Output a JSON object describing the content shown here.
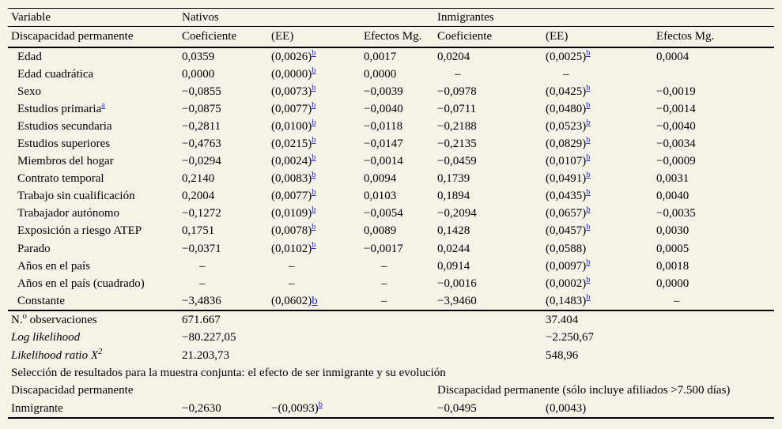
{
  "colors": {
    "background": "#f5f2e8",
    "text": "#000000",
    "footnote_link": "#2626cb",
    "rule": "#000000"
  },
  "table": {
    "header_row1": {
      "variable": "Variable",
      "nativos": "Nativos",
      "inmigrantes": "Inmigrantes"
    },
    "header_row2": {
      "variable": "Discapacidad permanente",
      "columns": [
        "Coeficiente",
        "(EE)",
        "Efectos Mg.",
        "Coeficiente",
        "(EE)",
        "Efectos Mg."
      ]
    },
    "rows": [
      {
        "label": "Edad",
        "cells": [
          "0,0359",
          "(0,0026)^b",
          "0,0017",
          "0,0204",
          "(0,0025)^b",
          "0,0004"
        ]
      },
      {
        "label": "Edad cuadrática",
        "cells": [
          "0,0000",
          "(0,0000)^b",
          "0,0000",
          "–",
          "–",
          ""
        ]
      },
      {
        "label": "Sexo",
        "cells": [
          "−0,0855",
          "(0,0073)^b",
          "−0,0039",
          "−0,0978",
          "(0,0425)^b",
          "−0,0019"
        ]
      },
      {
        "label": "Estudios primaria^a",
        "cells": [
          "−0,0875",
          "(0,0077)^b",
          "−0,0040",
          "−0,0711",
          "(0,0480)^b",
          "−0,0014"
        ]
      },
      {
        "label": "Estudios secundaria",
        "cells": [
          "−0,2811",
          "(0,0100)^b",
          "−0,0118",
          "−0,2188",
          "(0,0523)^b",
          "−0,0040"
        ]
      },
      {
        "label": "Estudios superiores",
        "cells": [
          "−0,4763",
          "(0,0215)^b",
          "−0,0147",
          "−0,2135",
          "(0,0829)^b",
          "−0,0034"
        ]
      },
      {
        "label": "Miembros del hogar",
        "cells": [
          "−0,0294",
          "(0,0024)^b",
          "−0,0014",
          "−0,0459",
          "(0,0107)^b",
          "−0,0009"
        ]
      },
      {
        "label": "Contrato temporal",
        "cells": [
          "0,2140",
          "(0,0083)^b",
          "0,0094",
          "0,1739",
          "(0,0491)^b",
          "0,0031"
        ]
      },
      {
        "label": "Trabajo sin cualificación",
        "cells": [
          "0,2004",
          "(0,0077)^b",
          "0,0103",
          "0,1894",
          "(0,0435)^b",
          "0,0040"
        ]
      },
      {
        "label": "Trabajador autónomo",
        "cells": [
          "−0,1272",
          "(0,0109)^b",
          "−0,0054",
          "−0,2094",
          "(0,0657)^b",
          "−0,0035"
        ]
      },
      {
        "label": "Exposición a riesgo ATEP",
        "cells": [
          "0,1751",
          "(0,0078)^b",
          "0,0089",
          "0,1428",
          "(0,0457)^b",
          "0,0030"
        ]
      },
      {
        "label": "Parado",
        "cells": [
          "−0,0371",
          "(0,0102)^b",
          "−0,0017",
          "0,0244",
          "(0,0588)",
          "0,0005"
        ]
      },
      {
        "label": "Años en el país",
        "cells": [
          "–",
          "–",
          "–",
          "0,0914",
          "(0,0097)^b",
          "0,0018"
        ]
      },
      {
        "label": "Años en el país (cuadrado)",
        "cells": [
          "–",
          "–",
          "–",
          "−0,0016",
          "(0,0002)^b",
          "0,0000"
        ]
      },
      {
        "label": "Constante",
        "cells": [
          "−3,4836",
          "(0,0602)~b",
          "–",
          "−3,9460",
          "(0,1483)^b",
          "–"
        ]
      }
    ],
    "stats": [
      {
        "label": "N.%o observaciones",
        "italic": false,
        "nativos": "671.667",
        "inmigrantes": "37.404"
      },
      {
        "label": "Log likelihood",
        "italic": true,
        "nativos": "−80.227,05",
        "inmigrantes": "−2.250,67"
      },
      {
        "label": "Likelihood ratio X%2",
        "italic": true,
        "nativos": "21.203,73",
        "inmigrantes": "548,96"
      }
    ],
    "selection": {
      "title": "Selección de resultados para la muestra conjunta: el efecto de ser inmigrante y su evolución",
      "left_header": "Discapacidad permanente",
      "right_header": "Discapacidad permanente (sólo incluye afiliados >7.500 días)",
      "row": {
        "label": "Inmigrante",
        "cells": [
          "−0,2630",
          "−(0,0093)^b",
          "",
          "−0,0495",
          "(0,0043)",
          ""
        ]
      }
    }
  }
}
